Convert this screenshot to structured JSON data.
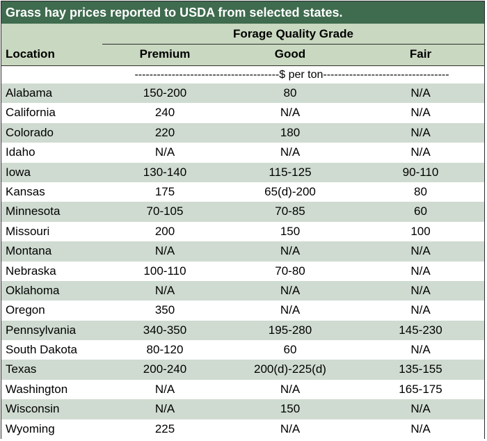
{
  "title": "Grass hay prices reported to USDA from selected states.",
  "header": {
    "group": "Forage Quality Grade",
    "location": "Location",
    "columns": [
      "Premium",
      "Good",
      "Fair"
    ]
  },
  "units": "---------------------------------------$ per ton----------------------------------",
  "rows": [
    {
      "location": "Alabama",
      "premium": "150-200",
      "good": "80",
      "fair": "N/A"
    },
    {
      "location": "California",
      "premium": "240",
      "good": "N/A",
      "fair": "N/A"
    },
    {
      "location": "Colorado",
      "premium": "220",
      "good": "180",
      "fair": "N/A"
    },
    {
      "location": "Idaho",
      "premium": "N/A",
      "good": "N/A",
      "fair": "N/A"
    },
    {
      "location": "Iowa",
      "premium": "130-140",
      "good": "115-125",
      "fair": "90-110"
    },
    {
      "location": "Kansas",
      "premium": "175",
      "good": "65(d)-200",
      "fair": "80"
    },
    {
      "location": "Minnesota",
      "premium": "70-105",
      "good": "70-85",
      "fair": "60"
    },
    {
      "location": "Missouri",
      "premium": "200",
      "good": "150",
      "fair": "100"
    },
    {
      "location": "Montana",
      "premium": "N/A",
      "good": "N/A",
      "fair": "N/A"
    },
    {
      "location": "Nebraska",
      "premium": "100-110",
      "good": "70-80",
      "fair": "N/A"
    },
    {
      "location": "Oklahoma",
      "premium": "N/A",
      "good": "N/A",
      "fair": "N/A"
    },
    {
      "location": "Oregon",
      "premium": "350",
      "good": "N/A",
      "fair": "N/A"
    },
    {
      "location": "Pennsylvania",
      "premium": "340-350",
      "good": "195-280",
      "fair": "145-230"
    },
    {
      "location": "South Dakota",
      "premium": "80-120",
      "good": "60",
      "fair": "N/A"
    },
    {
      "location": "Texas",
      "premium": "200-240",
      "good": "200(d)-225(d)",
      "fair": "135-155"
    },
    {
      "location": "Washington",
      "premium": "N/A",
      "good": "N/A",
      "fair": "165-175"
    },
    {
      "location": "Wisconsin",
      "premium": "N/A",
      "good": "150",
      "fair": "N/A"
    },
    {
      "location": "Wyoming",
      "premium": "225",
      "good": "N/A",
      "fair": "N/A"
    }
  ],
  "colors": {
    "title_bg": "#3f6b4e",
    "header_bg": "#c9d8c0",
    "row_shade": "#cfdbd0",
    "border": "#2d2d2d"
  }
}
